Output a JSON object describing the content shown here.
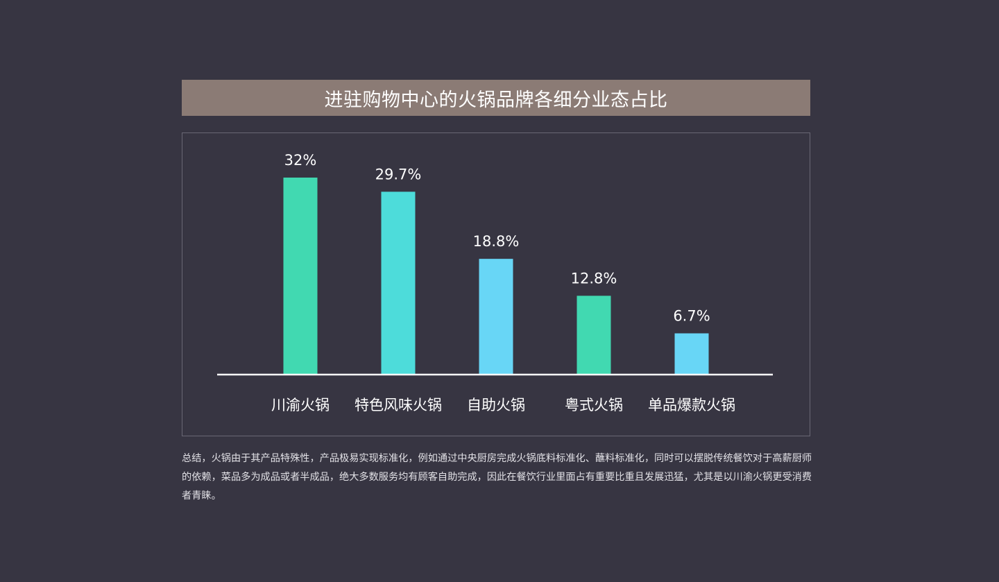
{
  "title": "进驻购物中心的火锅品牌各细分业态占比",
  "chart_data": {
    "type": "bar",
    "title": "进驻购物中心的火锅品牌各细分业态占比",
    "categories": [
      "川渝火锅",
      "特色风味火锅",
      "自助火锅",
      "粤式火锅",
      "单品爆款火锅"
    ],
    "values": [
      32,
      29.7,
      18.8,
      12.8,
      6.7
    ],
    "value_labels": [
      "32%",
      "29.7%",
      "18.8%",
      "12.8%",
      "6.7%"
    ],
    "bar_colors": [
      "#41d9b1",
      "#4ddcda",
      "#68d6f6",
      "#41d9b1",
      "#68d6f6"
    ],
    "xlabel": "",
    "ylabel": "",
    "ylim": [
      0,
      32
    ],
    "grid": false,
    "legend": "none"
  },
  "summary": "总结，火锅由于其产品特殊性，产品极易实现标准化，例如通过中央厨房完成火锅底料标准化、蘸料标准化，同时可以摆脱传统餐饮对于高薪厨师的依赖，菜品多为成品或者半成品，绝大多数服务均有顾客自助完成，因此在餐饮行业里面占有重要比重且发展迅猛，尤其是以川渝火锅更受消费者青睐。"
}
